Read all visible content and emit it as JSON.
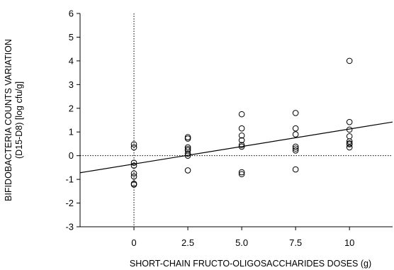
{
  "chart_data": {
    "type": "scatter",
    "title": "",
    "xlabel": "SHORT-CHAIN FRUCTO-OLIGOSACCHARIDES DOSES (g)",
    "ylabel_lines": [
      "BIFIDOBACTERIA COUNTS VARIATION",
      "(D15-D8) [log cfu/g]"
    ],
    "xlim": [
      -2.5,
      12
    ],
    "ylim": [
      -3,
      6
    ],
    "x_ticks": [
      {
        "value": 0,
        "label": "0"
      },
      {
        "value": 2.5,
        "label": "2.5"
      },
      {
        "value": 5,
        "label": "5.0"
      },
      {
        "value": 7.5,
        "label": "7.5"
      },
      {
        "value": 10,
        "label": "10"
      }
    ],
    "y_ticks": [
      {
        "value": -3,
        "label": "-3"
      },
      {
        "value": -2,
        "label": "-2"
      },
      {
        "value": -1,
        "label": "-1"
      },
      {
        "value": 0,
        "label": "0"
      },
      {
        "value": 1,
        "label": "1"
      },
      {
        "value": 2,
        "label": "2"
      },
      {
        "value": 3,
        "label": "3"
      },
      {
        "value": 4,
        "label": "4"
      },
      {
        "value": 5,
        "label": "5"
      },
      {
        "value": 6,
        "label": "6"
      }
    ],
    "reference_lines": {
      "x": 0,
      "y": 0,
      "style": "dotted"
    },
    "series": [
      {
        "points": [
          [
            0,
            0.48
          ],
          [
            0,
            0.35
          ],
          [
            0,
            -0.3
          ],
          [
            0,
            -0.42
          ],
          [
            0,
            -0.75
          ],
          [
            0,
            -0.88
          ],
          [
            0,
            -1.18
          ],
          [
            0,
            -1.22
          ],
          [
            2.5,
            0.78
          ],
          [
            2.5,
            0.72
          ],
          [
            2.5,
            0.35
          ],
          [
            2.5,
            0.28
          ],
          [
            2.5,
            0.22
          ],
          [
            2.5,
            0.08
          ],
          [
            2.5,
            0.0
          ],
          [
            2.5,
            -0.62
          ],
          [
            5,
            1.75
          ],
          [
            5,
            1.15
          ],
          [
            5,
            0.85
          ],
          [
            5,
            0.65
          ],
          [
            5,
            0.45
          ],
          [
            5,
            0.38
          ],
          [
            5,
            -0.7
          ],
          [
            5,
            -0.78
          ],
          [
            7.5,
            1.8
          ],
          [
            7.5,
            1.15
          ],
          [
            7.5,
            0.9
          ],
          [
            7.5,
            0.38
          ],
          [
            7.5,
            0.3
          ],
          [
            7.5,
            0.22
          ],
          [
            7.5,
            -0.58
          ],
          [
            10,
            4.0
          ],
          [
            10,
            1.42
          ],
          [
            10,
            1.1
          ],
          [
            10,
            0.82
          ],
          [
            10,
            0.6
          ],
          [
            10,
            0.52
          ],
          [
            10,
            0.48
          ],
          [
            10,
            0.35
          ]
        ]
      }
    ],
    "regression_line": {
      "x": [
        -2.5,
        12
      ],
      "y": [
        -0.72,
        1.42
      ]
    }
  }
}
